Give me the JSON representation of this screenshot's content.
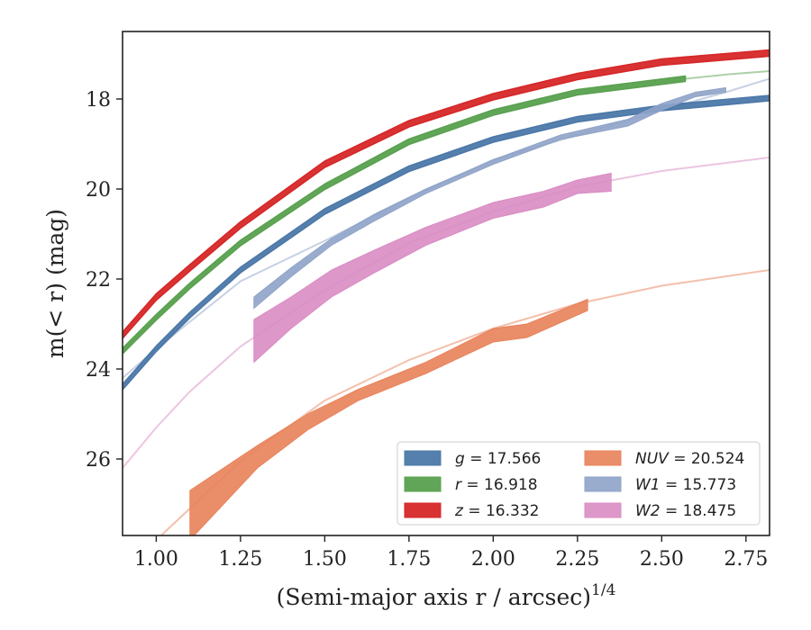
{
  "chart_data": {
    "type": "line",
    "title": "",
    "xlabel": "(Semi-major axis r / arcsec)",
    "xlabel_exponent": "1/4",
    "ylabel": "m(< r) (mag)",
    "xlim": [
      0.9,
      2.82
    ],
    "ylim": [
      27.7,
      16.5
    ],
    "y_inverted": true,
    "grid": false,
    "legend_position": "lower-right",
    "x_ticks": [
      1.0,
      1.25,
      1.5,
      1.75,
      2.0,
      2.25,
      2.5,
      2.75
    ],
    "x_tick_labels": [
      "1.00",
      "1.25",
      "1.50",
      "1.75",
      "2.00",
      "2.25",
      "2.50",
      "2.75"
    ],
    "y_ticks": [
      18,
      20,
      22,
      24,
      26
    ],
    "y_tick_labels": [
      "18",
      "20",
      "22",
      "24",
      "26"
    ],
    "series": [
      {
        "key": "g",
        "legend_label": "g = 17.566",
        "legend_var": "g",
        "legend_value": "= 17.566",
        "color": "#4c78a8",
        "band_width": 0.06,
        "measured_x": [
          0.9,
          1.0,
          1.1,
          1.25,
          1.5,
          1.75,
          2.0,
          2.25,
          2.5,
          2.82
        ],
        "measured_y": [
          24.4,
          23.55,
          22.8,
          21.8,
          20.5,
          19.55,
          18.9,
          18.45,
          18.2,
          17.98
        ],
        "model_x": [],
        "model_y": []
      },
      {
        "key": "r",
        "legend_label": "r = 16.918",
        "legend_var": "r",
        "legend_value": "= 16.918",
        "color": "#59a14f",
        "band_width": 0.06,
        "measured_x": [
          0.9,
          1.0,
          1.1,
          1.25,
          1.5,
          1.75,
          2.0,
          2.25,
          2.57
        ],
        "measured_y": [
          23.6,
          22.85,
          22.15,
          21.2,
          19.95,
          18.95,
          18.3,
          17.85,
          17.55
        ],
        "model_x": [
          2.57,
          2.7,
          2.82
        ],
        "model_y": [
          17.55,
          17.45,
          17.38
        ]
      },
      {
        "key": "z",
        "legend_label": "z = 16.332",
        "legend_var": "z",
        "legend_value": "= 16.332",
        "color": "#d62728",
        "band_width": 0.07,
        "measured_x": [
          0.9,
          1.0,
          1.1,
          1.25,
          1.5,
          1.75,
          2.0,
          2.25,
          2.5,
          2.82
        ],
        "measured_y": [
          23.25,
          22.4,
          21.75,
          20.8,
          19.45,
          18.55,
          17.95,
          17.5,
          17.18,
          16.98
        ],
        "model_x": [],
        "model_y": []
      },
      {
        "key": "NUV",
        "legend_label": "NUV = 20.524",
        "legend_var": "NUV",
        "legend_value": "= 20.524",
        "color": "#e8825a",
        "measured_x": [
          1.1,
          1.2,
          1.3,
          1.45,
          1.6,
          1.8,
          2.0,
          2.1,
          2.28
        ],
        "measured_upper": [
          26.7,
          26.2,
          25.7,
          25.0,
          24.45,
          23.85,
          23.1,
          23.0,
          22.45
        ],
        "measured_lower": [
          27.8,
          27.0,
          26.2,
          25.35,
          24.7,
          24.1,
          23.4,
          23.3,
          22.7
        ],
        "model_x": [
          0.9,
          1.0,
          1.1,
          1.25,
          1.5,
          1.75,
          2.0,
          2.25,
          2.5,
          2.82
        ],
        "model_y": [
          28.5,
          27.8,
          27.1,
          26.05,
          24.7,
          23.8,
          23.1,
          22.55,
          22.15,
          21.8
        ]
      },
      {
        "key": "W1",
        "legend_label": "W1 = 15.773",
        "legend_var": "W1",
        "legend_value": "= 15.773",
        "color": "#8fa3c8",
        "measured_x": [
          1.29,
          1.4,
          1.52,
          1.65,
          1.8,
          2.0,
          2.2,
          2.4,
          2.5,
          2.6,
          2.69
        ],
        "measured_upper": [
          22.4,
          21.75,
          21.1,
          20.55,
          20.0,
          19.35,
          18.8,
          18.45,
          18.1,
          17.85,
          17.75
        ],
        "measured_lower": [
          22.65,
          21.95,
          21.25,
          20.7,
          20.1,
          19.45,
          18.9,
          18.6,
          18.25,
          17.95,
          17.85
        ],
        "model_x": [
          0.9,
          1.0,
          1.1,
          1.25,
          1.5,
          1.75,
          2.0,
          2.25,
          2.5,
          2.69,
          2.82
        ],
        "model_y": [
          24.2,
          23.55,
          22.95,
          22.05,
          21.15,
          20.2,
          19.35,
          18.8,
          18.25,
          17.85,
          17.55
        ]
      },
      {
        "key": "W2",
        "legend_label": "W2 = 18.475",
        "legend_var": "W2",
        "legend_value": "= 18.475",
        "color": "#d98cc3",
        "measured_x": [
          1.29,
          1.4,
          1.52,
          1.65,
          1.8,
          2.0,
          2.15,
          2.25,
          2.35
        ],
        "measured_upper": [
          22.9,
          22.4,
          21.8,
          21.35,
          20.85,
          20.3,
          20.05,
          19.8,
          19.65
        ],
        "measured_lower": [
          23.85,
          23.1,
          22.4,
          21.85,
          21.25,
          20.65,
          20.4,
          20.1,
          20.05
        ],
        "model_x": [
          0.9,
          1.0,
          1.1,
          1.25,
          1.5,
          1.75,
          2.0,
          2.25,
          2.5,
          2.82
        ],
        "model_y": [
          26.2,
          25.3,
          24.5,
          23.5,
          22.25,
          21.2,
          20.5,
          19.95,
          19.6,
          19.3
        ]
      }
    ]
  }
}
